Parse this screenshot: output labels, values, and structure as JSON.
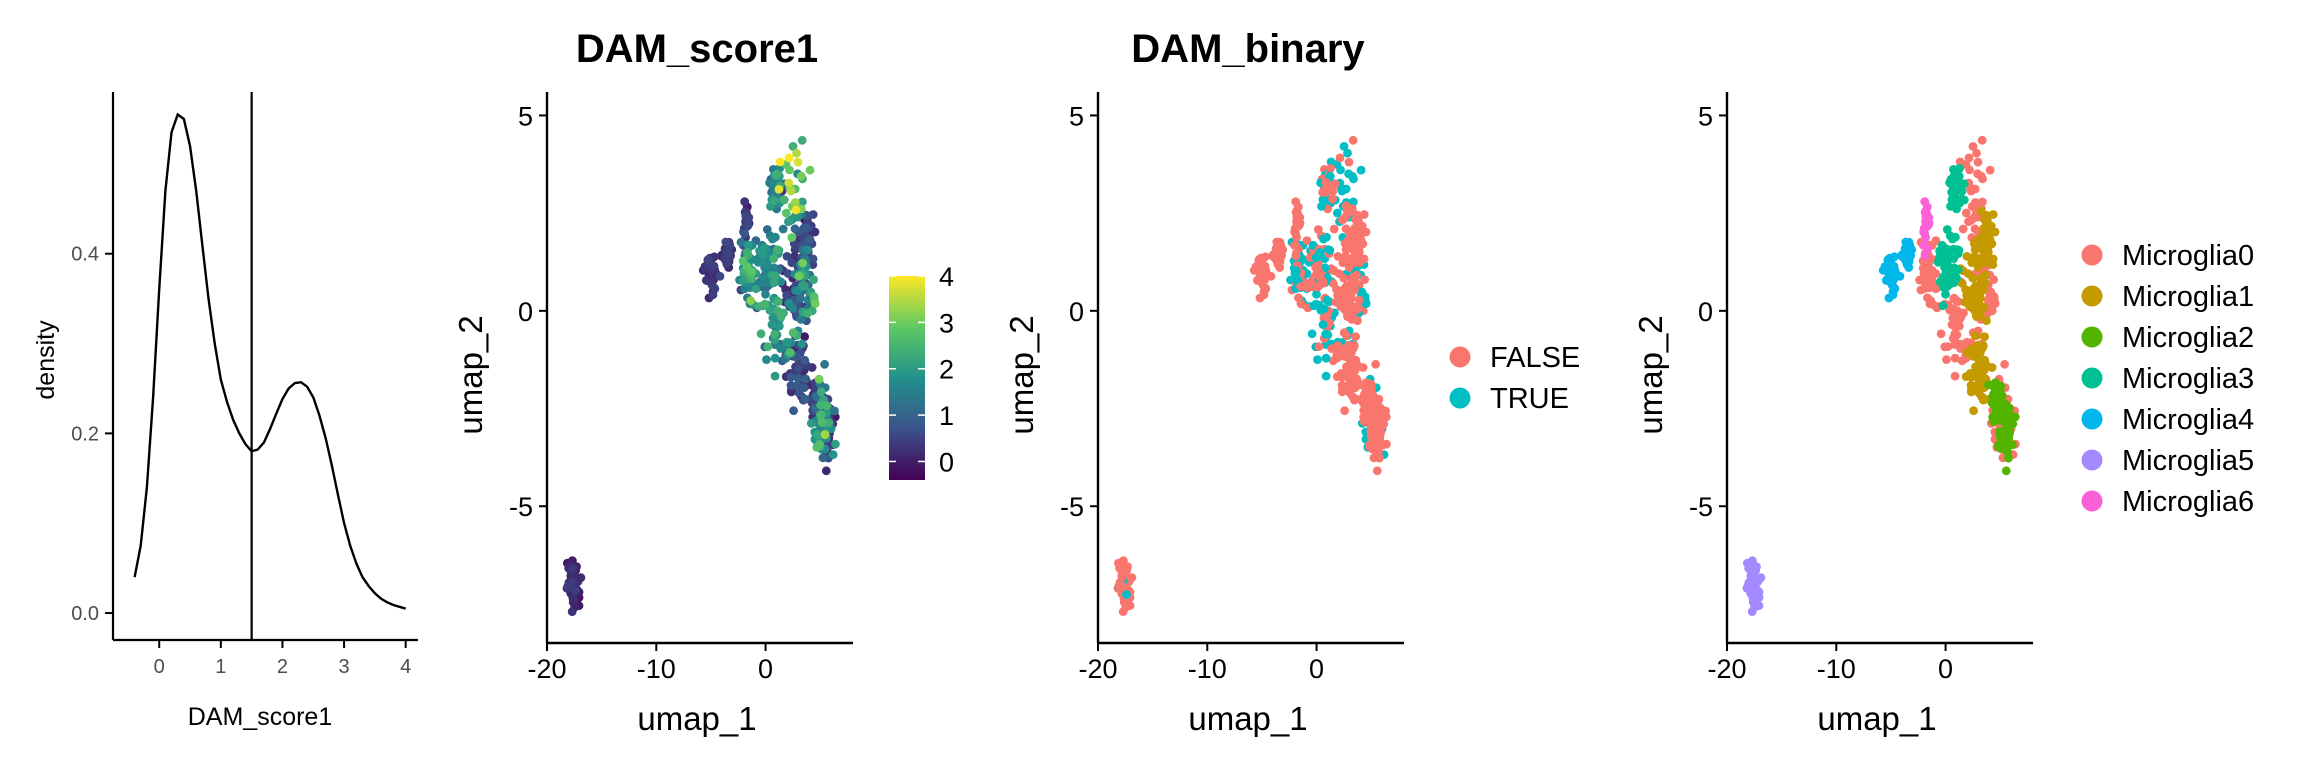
{
  "chart_data": [
    {
      "id": "density",
      "type": "line",
      "title": "",
      "xlabel": "DAM_score1",
      "ylabel": "density",
      "xlim": [
        -0.75,
        4.2
      ],
      "ylim": [
        -0.03,
        0.58
      ],
      "xticks": [
        0,
        1,
        2,
        3,
        4
      ],
      "yticks": [
        0.0,
        0.2,
        0.4
      ],
      "ytick_labels": [
        "0.0",
        "0.2",
        "0.4"
      ],
      "threshold": 1.5,
      "x": [
        -0.4,
        -0.3,
        -0.2,
        -0.1,
        0.0,
        0.1,
        0.2,
        0.3,
        0.4,
        0.5,
        0.6,
        0.7,
        0.8,
        0.9,
        1.0,
        1.1,
        1.2,
        1.3,
        1.4,
        1.5,
        1.6,
        1.7,
        1.8,
        1.9,
        2.0,
        2.1,
        2.2,
        2.3,
        2.4,
        2.5,
        2.6,
        2.7,
        2.8,
        2.9,
        3.0,
        3.1,
        3.2,
        3.3,
        3.4,
        3.5,
        3.6,
        3.7,
        3.8,
        3.9,
        4.0
      ],
      "y": [
        0.04,
        0.075,
        0.14,
        0.24,
        0.36,
        0.47,
        0.535,
        0.555,
        0.55,
        0.52,
        0.47,
        0.41,
        0.35,
        0.3,
        0.26,
        0.235,
        0.215,
        0.2,
        0.188,
        0.18,
        0.182,
        0.19,
        0.205,
        0.222,
        0.238,
        0.25,
        0.256,
        0.257,
        0.252,
        0.24,
        0.22,
        0.195,
        0.165,
        0.132,
        0.1,
        0.075,
        0.055,
        0.04,
        0.03,
        0.022,
        0.016,
        0.012,
        0.009,
        0.007,
        0.005
      ]
    },
    {
      "id": "score",
      "type": "scatter",
      "title": "DAM_score1",
      "xlabel": "umap_1",
      "ylabel": "umap_2",
      "xlim": [
        -20,
        8
      ],
      "ylim": [
        -8.5,
        5.6
      ],
      "xticks": [
        -20,
        -10,
        0
      ],
      "yticks": [
        -5,
        0,
        5
      ],
      "colorbar": {
        "min": -0.4,
        "max": 4,
        "ticks": [
          0,
          1,
          2,
          3,
          4
        ],
        "colors": [
          "#440154",
          "#3b528b",
          "#21918c",
          "#5ec962",
          "#fde725"
        ]
      }
    },
    {
      "id": "binary",
      "type": "scatter",
      "title": "DAM_binary",
      "xlabel": "umap_1",
      "ylabel": "umap_2",
      "xlim": [
        -20,
        8
      ],
      "ylim": [
        -8.5,
        5.6
      ],
      "xticks": [
        -20,
        -10,
        0
      ],
      "yticks": [
        -5,
        0,
        5
      ],
      "legend": [
        {
          "name": "FALSE",
          "color": "#F8766D"
        },
        {
          "name": "TRUE",
          "color": "#00BFC4"
        }
      ]
    },
    {
      "id": "cluster",
      "type": "scatter",
      "title": "",
      "xlabel": "umap_1",
      "ylabel": "umap_2",
      "xlim": [
        -20,
        8
      ],
      "ylim": [
        -8.5,
        5.6
      ],
      "xticks": [
        -20,
        -10,
        0
      ],
      "yticks": [
        -5,
        0,
        5
      ],
      "legend": [
        {
          "name": "Microglia0",
          "color": "#F8766D"
        },
        {
          "name": "Microglia1",
          "color": "#C49A00"
        },
        {
          "name": "Microglia2",
          "color": "#53B400"
        },
        {
          "name": "Microglia3",
          "color": "#00C094"
        },
        {
          "name": "Microglia4",
          "color": "#00B6EB"
        },
        {
          "name": "Microglia5",
          "color": "#A58AFF"
        },
        {
          "name": "Microglia6",
          "color": "#FB61D7"
        }
      ]
    }
  ]
}
